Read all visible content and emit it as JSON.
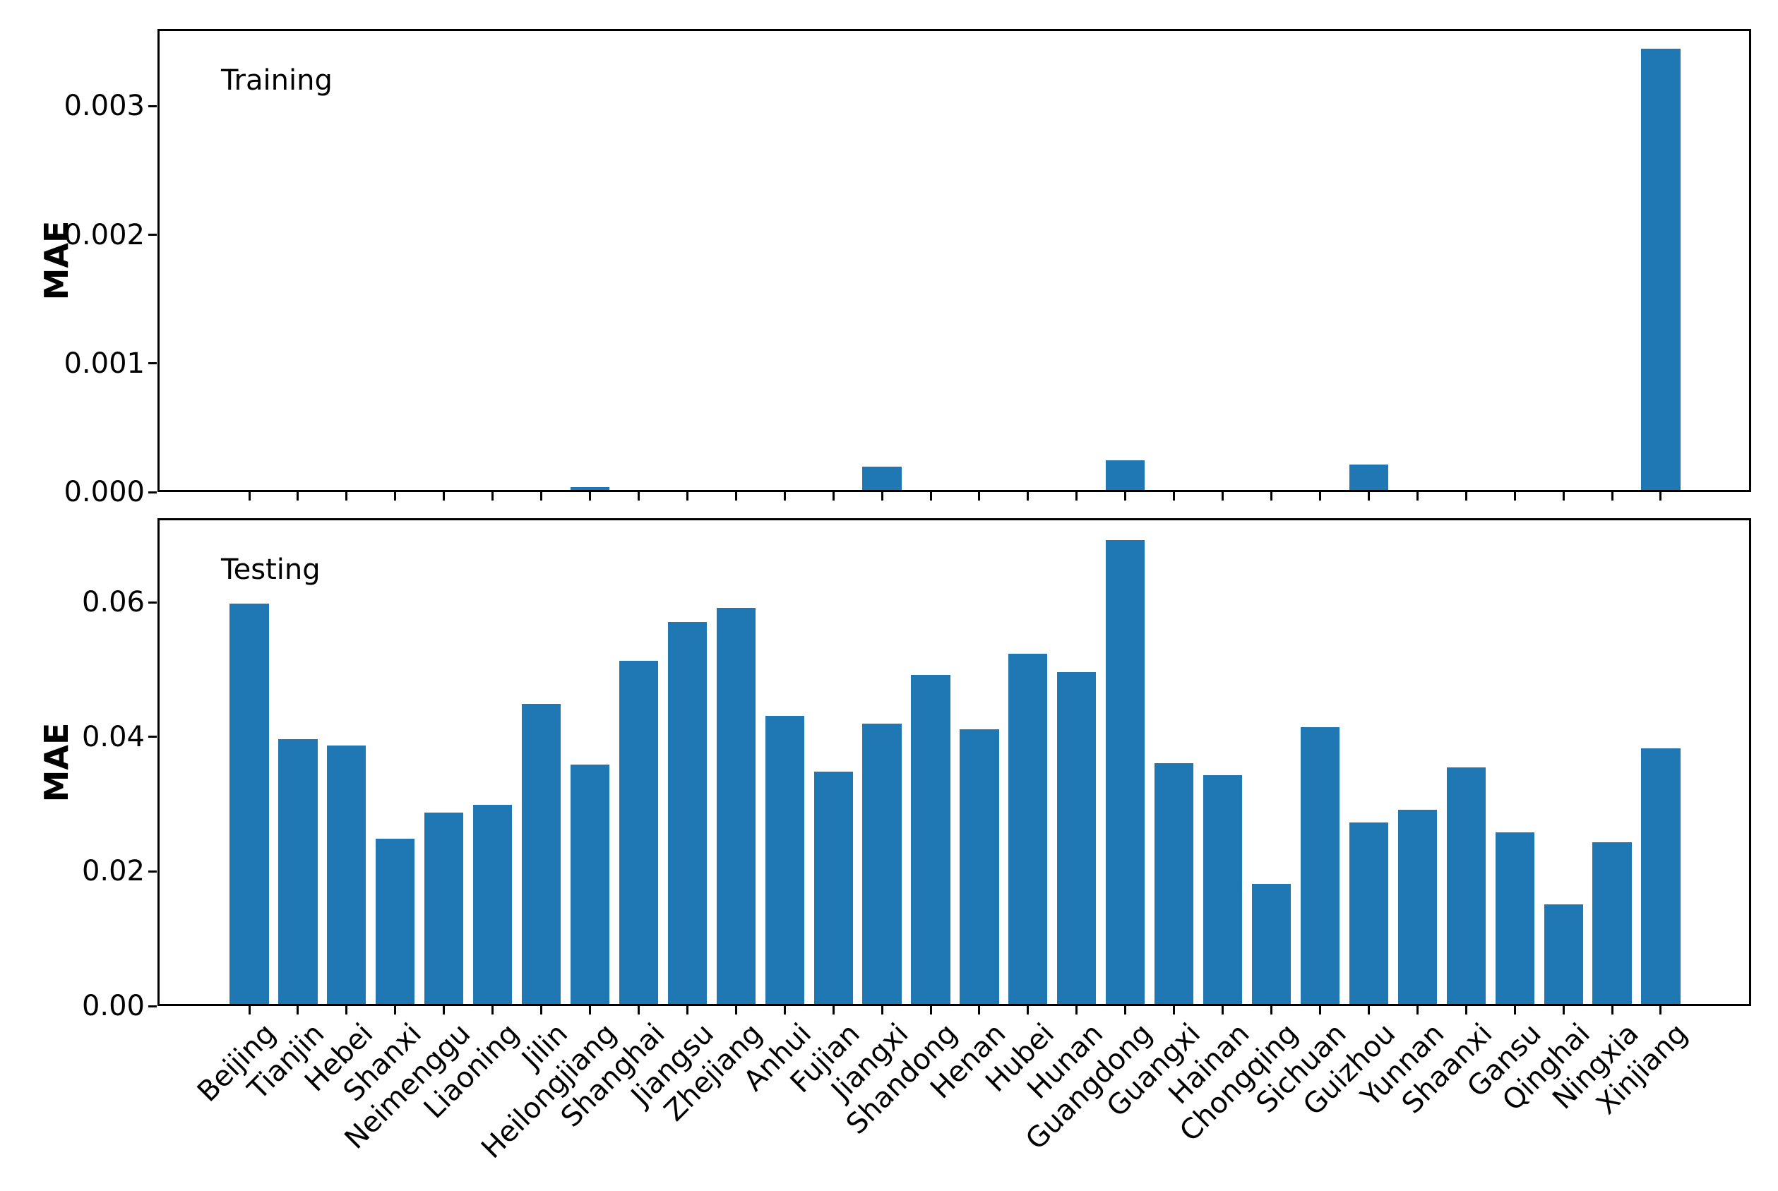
{
  "figure": {
    "background": "#ffffff",
    "bar_color": "#1f77b4",
    "text_color": "#000000"
  },
  "chart_data": [
    {
      "type": "bar",
      "title": "Training",
      "ylabel": "MAE",
      "categories": [
        "Beijing",
        "Tianjin",
        "Hebei",
        "Shanxi",
        "Neimenggu",
        "Liaoning",
        "Jilin",
        "Heilongjiang",
        "Shanghai",
        "Jiangsu",
        "Zhejiang",
        "Anhui",
        "Fujian",
        "Jiangxi",
        "Shandong",
        "Henan",
        "Hubei",
        "Hunan",
        "Guangdong",
        "Guangxi",
        "Hainan",
        "Chongqing",
        "Sichuan",
        "Guizhou",
        "Yunnan",
        "Shaanxi",
        "Gansu",
        "Qinghai",
        "Ningxia",
        "Xinjiang"
      ],
      "values": [
        0,
        0,
        0,
        0,
        0,
        0,
        0,
        2e-05,
        0,
        0,
        0,
        0,
        0,
        0.00018,
        0,
        0,
        0,
        0,
        0.00023,
        0,
        0,
        0,
        0,
        0.0002,
        0,
        0,
        0,
        0,
        0,
        0.00343
      ],
      "ylim": [
        0,
        0.0036
      ],
      "ytick_values": [
        0,
        0.001,
        0.002,
        0.003
      ],
      "ytick_labels": [
        "0.000",
        "0.001",
        "0.002",
        "0.003"
      ],
      "x_tick_labels_visible": false,
      "grid": false,
      "legend": "none"
    },
    {
      "type": "bar",
      "title": "Testing",
      "ylabel": "MAE",
      "categories": [
        "Beijing",
        "Tianjin",
        "Hebei",
        "Shanxi",
        "Neimenggu",
        "Liaoning",
        "Jilin",
        "Heilongjiang",
        "Shanghai",
        "Jiangsu",
        "Zhejiang",
        "Anhui",
        "Fujian",
        "Jiangxi",
        "Shandong",
        "Henan",
        "Hubei",
        "Hunan",
        "Guangdong",
        "Guangxi",
        "Hainan",
        "Chongqing",
        "Sichuan",
        "Guizhou",
        "Yunnan",
        "Shaanxi",
        "Gansu",
        "Qinghai",
        "Ningxia",
        "Xinjiang"
      ],
      "values": [
        0.0595,
        0.0393,
        0.0384,
        0.0245,
        0.0284,
        0.0296,
        0.0446,
        0.0356,
        0.051,
        0.0568,
        0.0589,
        0.0428,
        0.0345,
        0.0417,
        0.0489,
        0.0408,
        0.052,
        0.0493,
        0.0689,
        0.0358,
        0.034,
        0.0178,
        0.0411,
        0.027,
        0.0289,
        0.0352,
        0.0255,
        0.0148,
        0.024,
        0.038
      ],
      "ylim": [
        0,
        0.0725
      ],
      "ytick_values": [
        0,
        0.02,
        0.04,
        0.06
      ],
      "ytick_labels": [
        "0.00",
        "0.02",
        "0.04",
        "0.06"
      ],
      "x_tick_labels_visible": true,
      "grid": false,
      "legend": "none"
    }
  ]
}
